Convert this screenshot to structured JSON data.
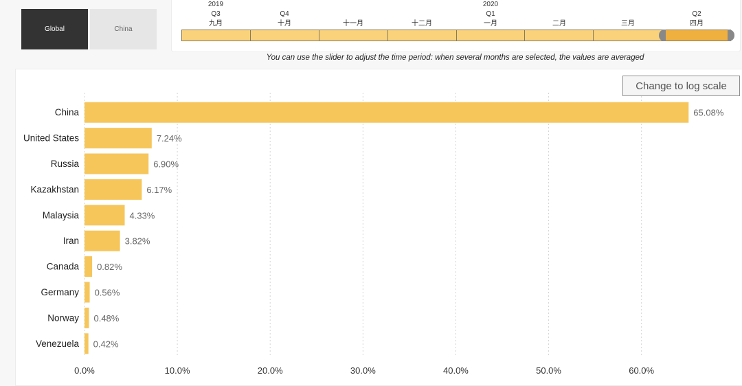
{
  "toggle": {
    "global_label": "Global",
    "china_label": "China"
  },
  "timeline": {
    "years": [
      {
        "label": "2019",
        "index": 0
      },
      {
        "label": "2020",
        "index": 4
      }
    ],
    "quarters": [
      {
        "label": "Q3",
        "index": 0
      },
      {
        "label": "Q4",
        "index": 1
      },
      {
        "label": "Q1",
        "index": 4
      },
      {
        "label": "Q2",
        "index": 7
      }
    ],
    "months": [
      "九月",
      "十月",
      "十一月",
      "十二月",
      "一月",
      "二月",
      "三月",
      "四月"
    ],
    "selected_months": [
      "四月"
    ]
  },
  "caption": "You can use the slider to adjust the time period: when several months are selected, the values are averaged",
  "log_button_label": "Change to log scale",
  "colors": {
    "bar": "#f6c65b",
    "selection": "#efb03f",
    "track": "#f9d27b",
    "handle": "#888888"
  },
  "chart_data": {
    "type": "bar",
    "orientation": "horizontal",
    "categories": [
      "China",
      "United States",
      "Russia",
      "Kazakhstan",
      "Malaysia",
      "Iran",
      "Canada",
      "Germany",
      "Norway",
      "Venezuela"
    ],
    "values": [
      65.08,
      7.24,
      6.9,
      6.17,
      4.33,
      3.82,
      0.82,
      0.56,
      0.48,
      0.42
    ],
    "value_labels": [
      "65.08%",
      "7.24%",
      "6.90%",
      "6.17%",
      "4.33%",
      "3.82%",
      "0.82%",
      "0.56%",
      "0.48%",
      "0.42%"
    ],
    "xticks": [
      "0.0%",
      "10.0%",
      "20.0%",
      "30.0%",
      "40.0%",
      "50.0%",
      "60.0%"
    ],
    "xtick_values": [
      0,
      10,
      20,
      30,
      40,
      50,
      60
    ],
    "xlim": [
      0,
      67.5
    ],
    "grid": true,
    "title": "",
    "xlabel": "",
    "ylabel": ""
  }
}
